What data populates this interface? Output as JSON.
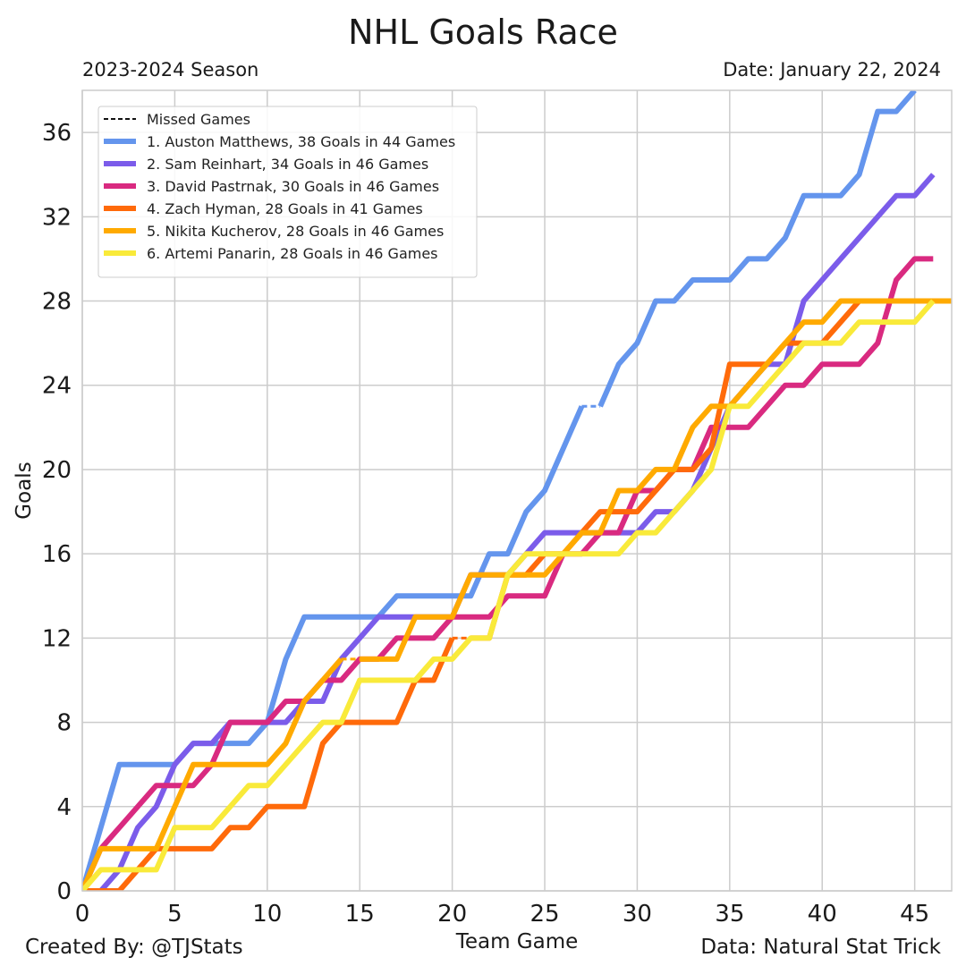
{
  "chart_data": {
    "type": "line",
    "title": "NHL Goals Race",
    "subtitle_left": "2023-2024 Season",
    "subtitle_right": "Date: January 22, 2024",
    "xlabel": "Team Game",
    "ylabel": "Goals",
    "xlim": [
      0,
      47
    ],
    "ylim": [
      0,
      38
    ],
    "xticks": [
      0,
      5,
      10,
      15,
      20,
      25,
      30,
      35,
      40,
      45
    ],
    "yticks": [
      0,
      4,
      8,
      12,
      16,
      20,
      24,
      28,
      32,
      36
    ],
    "grid": true,
    "legend_position": "top-left",
    "legend_extra": "Missed Games",
    "series": [
      {
        "name": "1. Auston Matthews, 38 Goals in 44 Games",
        "color": "#6495ed",
        "x": [
          0,
          1,
          2,
          3,
          4,
          5,
          6,
          7,
          8,
          9,
          10,
          11,
          12,
          13,
          14,
          15,
          16,
          17,
          18,
          19,
          20,
          21,
          22,
          23,
          24,
          25,
          26,
          27,
          28,
          29,
          30,
          31,
          32,
          33,
          34,
          35,
          36,
          37,
          38,
          39,
          40,
          41,
          42,
          43,
          44,
          45
        ],
        "y": [
          0,
          3,
          6,
          6,
          6,
          6,
          7,
          7,
          7,
          7,
          8,
          11,
          13,
          13,
          13,
          13,
          13,
          14,
          14,
          14,
          14,
          14,
          16,
          16,
          18,
          19,
          21,
          23,
          23,
          25,
          26,
          28,
          28,
          29,
          29,
          29,
          30,
          30,
          31,
          33,
          33,
          33,
          34,
          37,
          37,
          38
        ],
        "missed_segments": [
          [
            27,
            28
          ]
        ]
      },
      {
        "name": "2. Sam Reinhart, 34 Goals in 46 Games",
        "color": "#7b5cea",
        "x": [
          0,
          1,
          2,
          3,
          4,
          5,
          6,
          7,
          8,
          9,
          10,
          11,
          12,
          13,
          14,
          15,
          16,
          17,
          18,
          19,
          20,
          21,
          22,
          23,
          24,
          25,
          26,
          27,
          28,
          29,
          30,
          31,
          32,
          33,
          34,
          35,
          36,
          37,
          38,
          39,
          40,
          41,
          42,
          43,
          44,
          45,
          46
        ],
        "y": [
          0,
          0,
          1,
          3,
          4,
          6,
          7,
          7,
          8,
          8,
          8,
          8,
          9,
          9,
          11,
          12,
          13,
          13,
          13,
          13,
          13,
          15,
          15,
          15,
          16,
          17,
          17,
          17,
          17,
          17,
          17,
          18,
          18,
          19,
          21,
          23,
          24,
          25,
          25,
          28,
          29,
          30,
          31,
          32,
          33,
          33,
          34
        ]
      },
      {
        "name": "3. David Pastrnak, 30 Goals in 46 Games",
        "color": "#d92a80",
        "x": [
          0,
          1,
          2,
          3,
          4,
          5,
          6,
          7,
          8,
          9,
          10,
          11,
          12,
          13,
          14,
          15,
          16,
          17,
          18,
          19,
          20,
          21,
          22,
          23,
          24,
          25,
          26,
          27,
          28,
          29,
          30,
          31,
          32,
          33,
          34,
          35,
          36,
          37,
          38,
          39,
          40,
          41,
          42,
          43,
          44,
          45,
          46
        ],
        "y": [
          0,
          2,
          3,
          4,
          5,
          5,
          5,
          6,
          8,
          8,
          8,
          9,
          9,
          10,
          10,
          11,
          11,
          12,
          12,
          12,
          13,
          13,
          13,
          14,
          14,
          14,
          16,
          16,
          17,
          17,
          19,
          19,
          20,
          20,
          22,
          22,
          22,
          23,
          24,
          24,
          25,
          25,
          25,
          26,
          29,
          30,
          30
        ]
      },
      {
        "name": "4. Zach Hyman, 28 Goals in 41 Games",
        "color": "#ff6a0a",
        "x": [
          0,
          1,
          2,
          3,
          4,
          5,
          6,
          7,
          8,
          9,
          10,
          11,
          12,
          13,
          14,
          15,
          16,
          17,
          18,
          19,
          20,
          21,
          22,
          23,
          24,
          25,
          26,
          27,
          28,
          29,
          30,
          31,
          32,
          33,
          34,
          35,
          36,
          37,
          38,
          39,
          40,
          41,
          42,
          43,
          44,
          45,
          46,
          47
        ],
        "y": [
          0,
          0,
          0,
          1,
          2,
          2,
          2,
          2,
          3,
          3,
          4,
          4,
          4,
          7,
          8,
          8,
          8,
          8,
          10,
          10,
          12,
          12,
          12,
          15,
          15,
          16,
          16,
          17,
          18,
          18,
          18,
          19,
          20,
          20,
          21,
          25,
          25,
          25,
          26,
          26,
          26,
          27,
          28,
          28,
          28,
          28,
          28,
          28
        ],
        "missed_segments": [
          [
            20,
            21
          ]
        ]
      },
      {
        "name": "5. Nikita Kucherov, 28 Goals in 46 Games",
        "color": "#ffaa00",
        "x": [
          0,
          1,
          2,
          3,
          4,
          5,
          6,
          7,
          8,
          9,
          10,
          11,
          12,
          13,
          14,
          15,
          16,
          17,
          18,
          19,
          20,
          21,
          22,
          23,
          24,
          25,
          26,
          27,
          28,
          29,
          30,
          31,
          32,
          33,
          34,
          35,
          36,
          37,
          38,
          39,
          40,
          41,
          42,
          43,
          44,
          45,
          46,
          47
        ],
        "y": [
          0,
          2,
          2,
          2,
          2,
          4,
          6,
          6,
          6,
          6,
          6,
          7,
          9,
          10,
          11,
          11,
          11,
          11,
          13,
          13,
          13,
          15,
          15,
          15,
          15,
          15,
          16,
          17,
          17,
          19,
          19,
          20,
          20,
          22,
          23,
          23,
          24,
          25,
          26,
          27,
          27,
          28,
          28,
          28,
          28,
          28,
          28,
          28
        ],
        "missed_segments": [
          [
            14,
            15
          ]
        ]
      },
      {
        "name": "6. Artemi Panarin, 28 Goals in 46 Games",
        "color": "#f9ea3a",
        "x": [
          0,
          1,
          2,
          3,
          4,
          5,
          6,
          7,
          8,
          9,
          10,
          11,
          12,
          13,
          14,
          15,
          16,
          17,
          18,
          19,
          20,
          21,
          22,
          23,
          24,
          25,
          26,
          27,
          28,
          29,
          30,
          31,
          32,
          33,
          34,
          35,
          36,
          37,
          38,
          39,
          40,
          41,
          42,
          43,
          44,
          45,
          46
        ],
        "y": [
          0,
          1,
          1,
          1,
          1,
          3,
          3,
          3,
          4,
          5,
          5,
          6,
          7,
          8,
          8,
          10,
          10,
          10,
          10,
          11,
          11,
          12,
          12,
          15,
          16,
          16,
          16,
          16,
          16,
          16,
          17,
          17,
          18,
          19,
          20,
          23,
          23,
          24,
          25,
          26,
          26,
          26,
          27,
          27,
          27,
          27,
          28
        ]
      }
    ]
  },
  "footer": {
    "created_by": "Created By: @TJStats",
    "data_source": "Data: Natural Stat Trick"
  }
}
